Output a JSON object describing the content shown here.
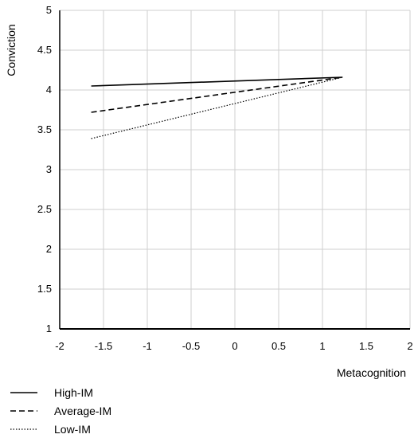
{
  "chart_data": {
    "type": "line",
    "title": "",
    "xlabel": "Metacognition",
    "ylabel": "Conviction",
    "xlim": [
      -2,
      2
    ],
    "ylim": [
      1,
      5
    ],
    "x_ticks": [
      "-2",
      "-1.5",
      "-1",
      "-0.5",
      "0",
      "0.5",
      "1",
      "1.5",
      "2"
    ],
    "y_ticks": [
      "1",
      "1.5",
      "2",
      "2.5",
      "3",
      "3.5",
      "4",
      "4.5",
      "5"
    ],
    "grid": true,
    "legend_position": "bottom-left",
    "series": [
      {
        "name": "High-IM",
        "style": "solid",
        "x": [
          -1.64,
          1.23
        ],
        "y": [
          4.05,
          4.16
        ]
      },
      {
        "name": "Average-IM",
        "style": "dashed",
        "x": [
          -1.64,
          1.23
        ],
        "y": [
          3.72,
          4.16
        ]
      },
      {
        "name": "Low-IM",
        "style": "dotted",
        "x": [
          -1.64,
          1.23
        ],
        "y": [
          3.39,
          4.16
        ]
      }
    ]
  }
}
